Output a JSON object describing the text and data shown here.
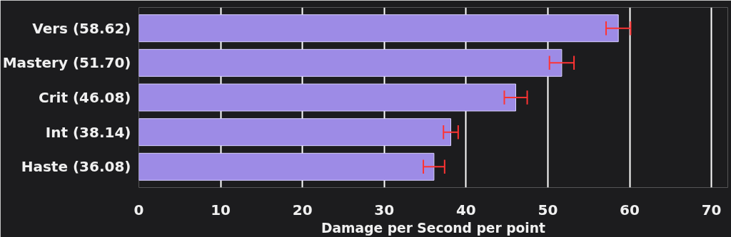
{
  "chart_data": {
    "type": "bar",
    "orientation": "horizontal",
    "xlabel": "Damage per Second per point",
    "categories": [
      "Vers (58.62)",
      "Mastery (51.70)",
      "Crit (46.08)",
      "Int (38.14)",
      "Haste (36.08)"
    ],
    "values": [
      58.62,
      51.7,
      46.08,
      38.14,
      36.08
    ],
    "errors": [
      1.5,
      1.5,
      1.4,
      0.9,
      1.3
    ],
    "color": "#9d8be6",
    "xlim": [
      0,
      72
    ],
    "xticks": [
      0,
      10,
      20,
      30,
      40,
      50,
      60,
      70
    ],
    "grid": "x"
  }
}
